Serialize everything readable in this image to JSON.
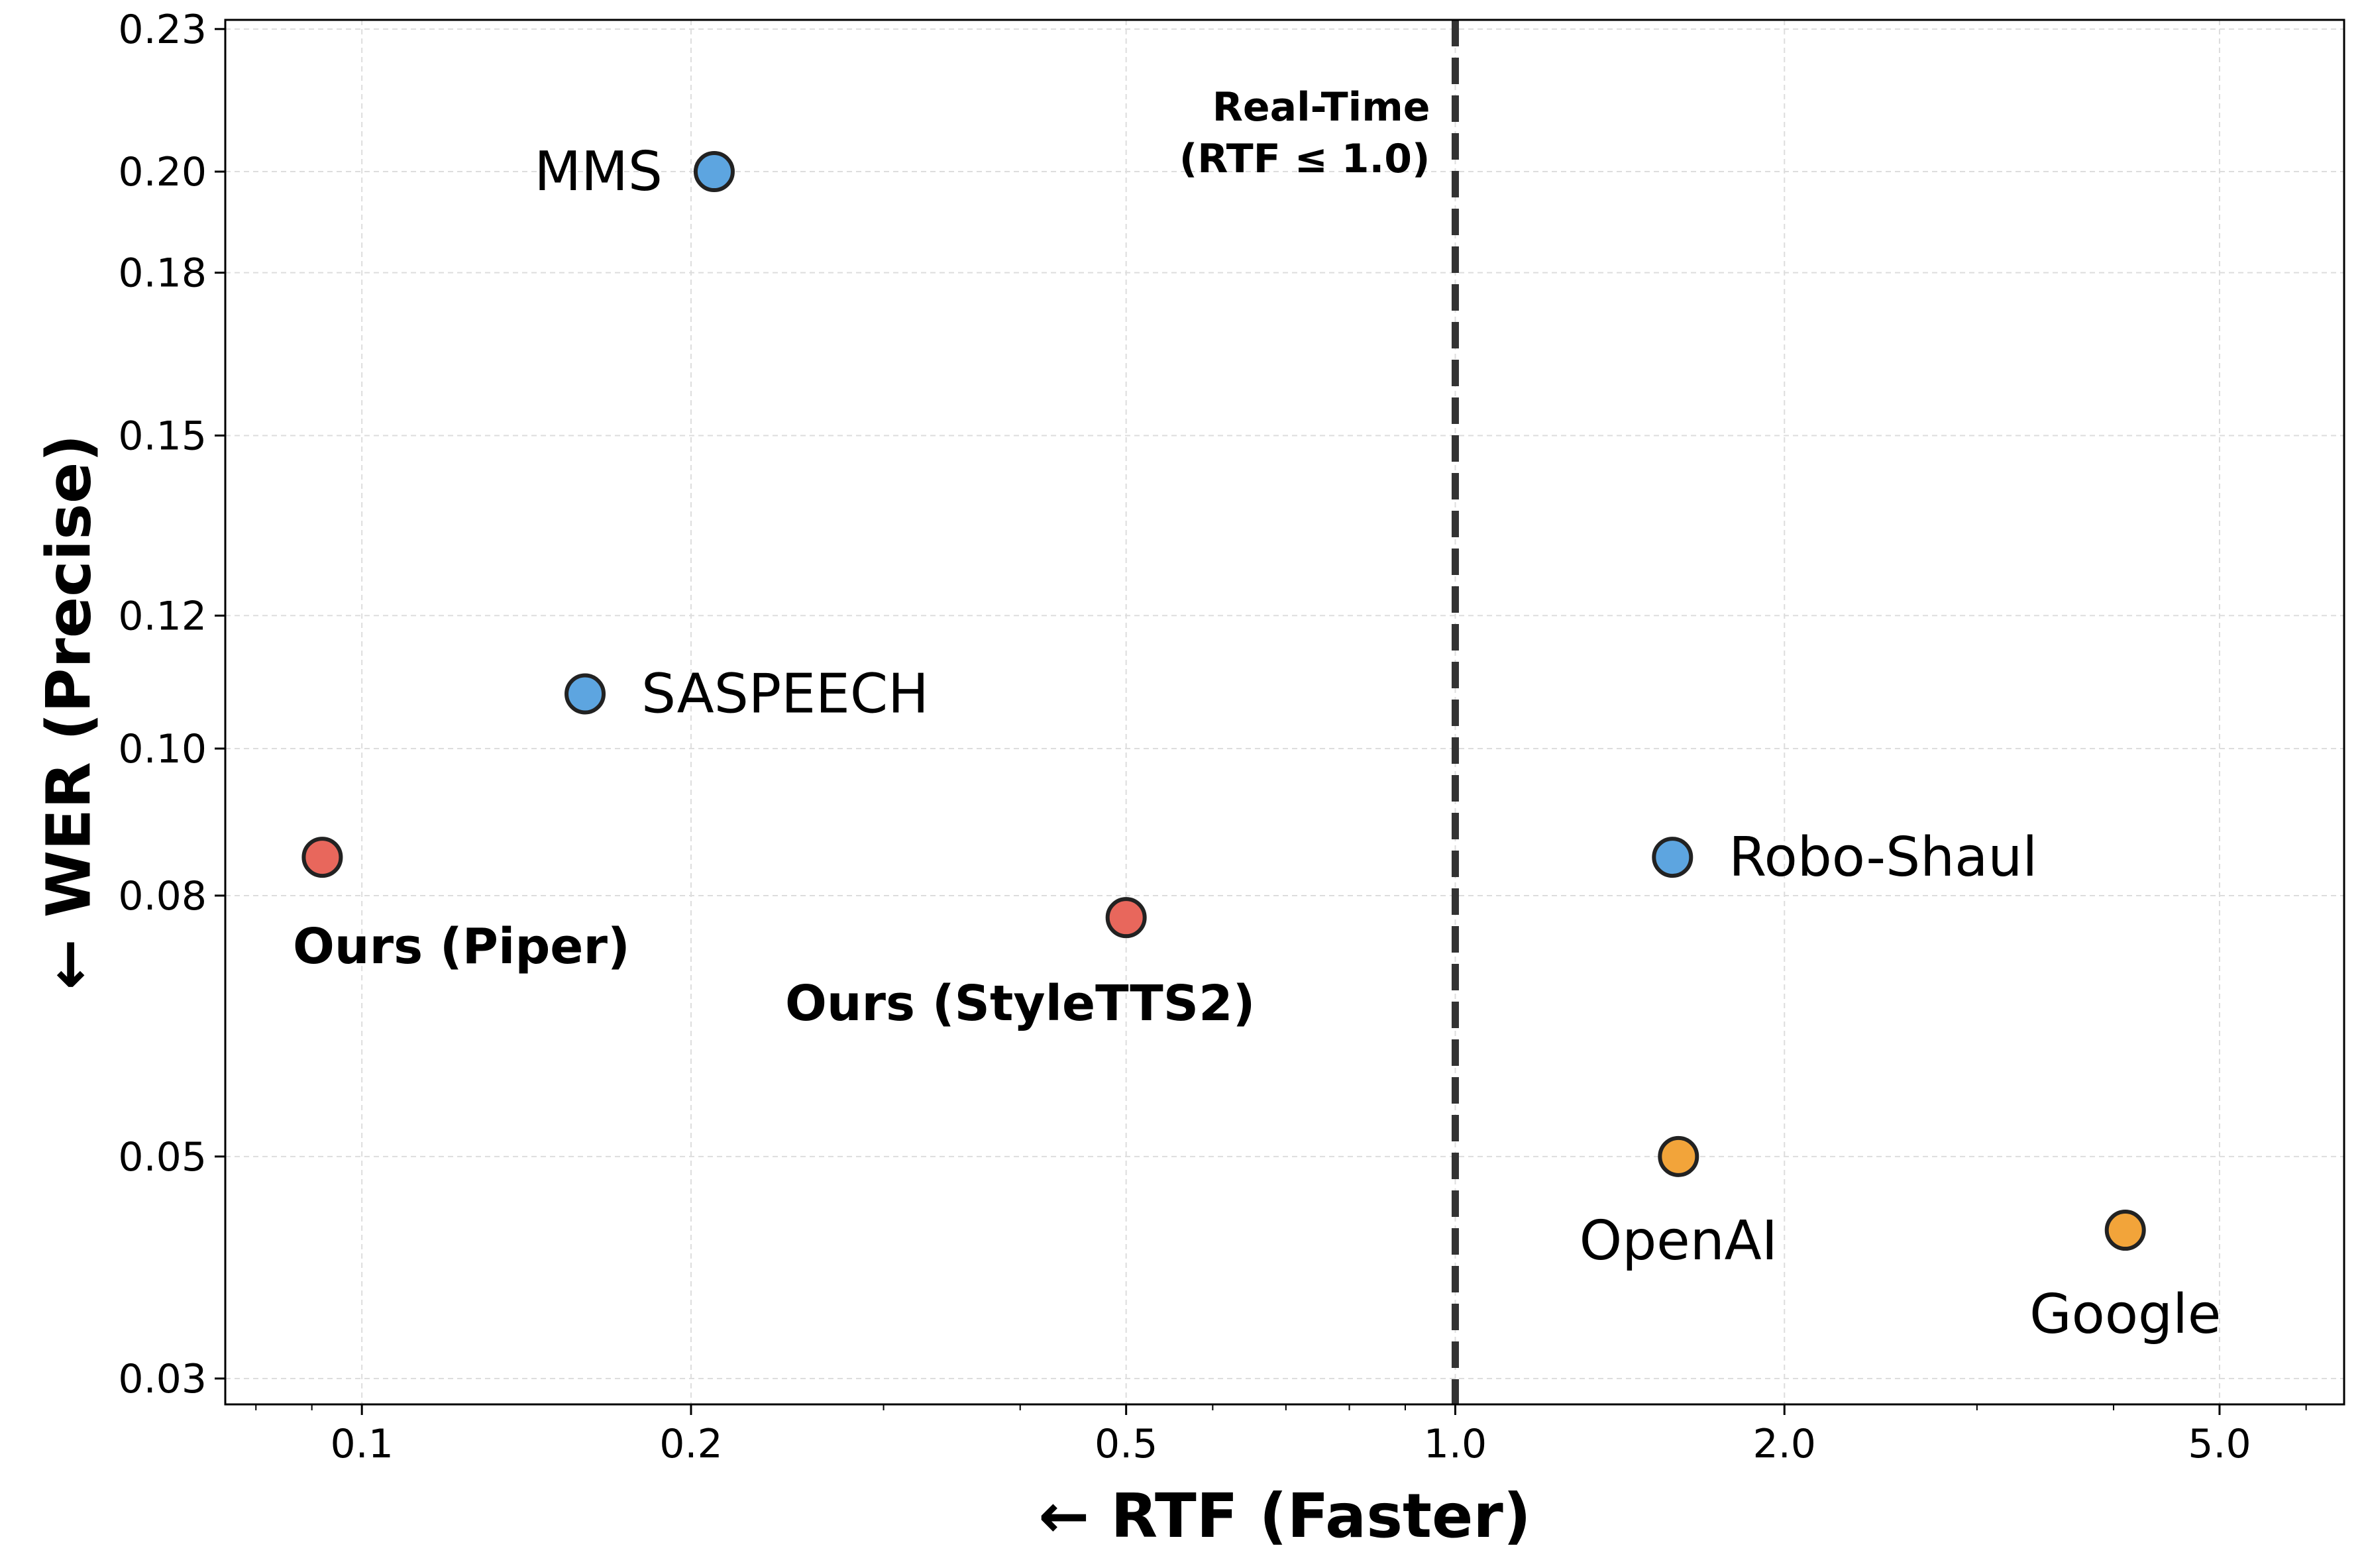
{
  "chart_data": {
    "type": "scatter",
    "title": "",
    "xlabel": "← RTF (Faster)",
    "ylabel": "← WER (Precise)",
    "x_scale": "log",
    "y_scale": "sqrt",
    "xlim": [
      0.075,
      6.5
    ],
    "ylim": [
      0.028,
      0.232
    ],
    "x_ticks": [
      {
        "value": 0.1,
        "label": "0.1"
      },
      {
        "value": 0.2,
        "label": "0.2"
      },
      {
        "value": 0.5,
        "label": "0.5"
      },
      {
        "value": 1.0,
        "label": "1.0"
      },
      {
        "value": 2.0,
        "label": "2.0"
      },
      {
        "value": 5.0,
        "label": "5.0"
      }
    ],
    "y_ticks": [
      {
        "value": 0.03,
        "label": "0.03"
      },
      {
        "value": 0.05,
        "label": "0.05"
      },
      {
        "value": 0.08,
        "label": "0.08"
      },
      {
        "value": 0.1,
        "label": "0.10"
      },
      {
        "value": 0.12,
        "label": "0.12"
      },
      {
        "value": 0.15,
        "label": "0.15"
      },
      {
        "value": 0.18,
        "label": "0.18"
      },
      {
        "value": 0.2,
        "label": "0.20"
      },
      {
        "value": 0.23,
        "label": "0.23"
      }
    ],
    "grid": true,
    "points": [
      {
        "label": "MMS",
        "x": 0.21,
        "y": 0.2,
        "color": "#5DA5E0",
        "bold": false,
        "label_pos": "left"
      },
      {
        "label": "SASPEECH",
        "x": 0.16,
        "y": 0.108,
        "color": "#5DA5E0",
        "bold": false,
        "label_pos": "right"
      },
      {
        "label": "Ours (Piper)",
        "x": 0.092,
        "y": 0.085,
        "color": "#E8675C",
        "bold": true,
        "label_pos": "below"
      },
      {
        "label": "Ours (StyleTTS2)",
        "x": 0.5,
        "y": 0.0772,
        "color": "#E8675C",
        "bold": true,
        "label_pos": "below-left"
      },
      {
        "label": "Robo-Shaul",
        "x": 1.58,
        "y": 0.085,
        "color": "#5DA5E0",
        "bold": false,
        "label_pos": "right"
      },
      {
        "label": "OpenAI",
        "x": 1.6,
        "y": 0.05,
        "color": "#F2A43A",
        "bold": false,
        "label_pos": "below"
      },
      {
        "label": "Google",
        "x": 4.1,
        "y": 0.0428,
        "color": "#F2A43A",
        "bold": false,
        "label_pos": "below"
      }
    ],
    "annotations": [
      {
        "text_line1": "Real-Time",
        "text_line2": "(RTF ≤ 1.0)",
        "x": 1.0,
        "style": "dashed-vertical-line"
      }
    ],
    "colors": {
      "cloud": "#5DA5E0",
      "ours": "#E8675C",
      "commercial": "#F2A43A",
      "threshold": "#333333"
    }
  }
}
